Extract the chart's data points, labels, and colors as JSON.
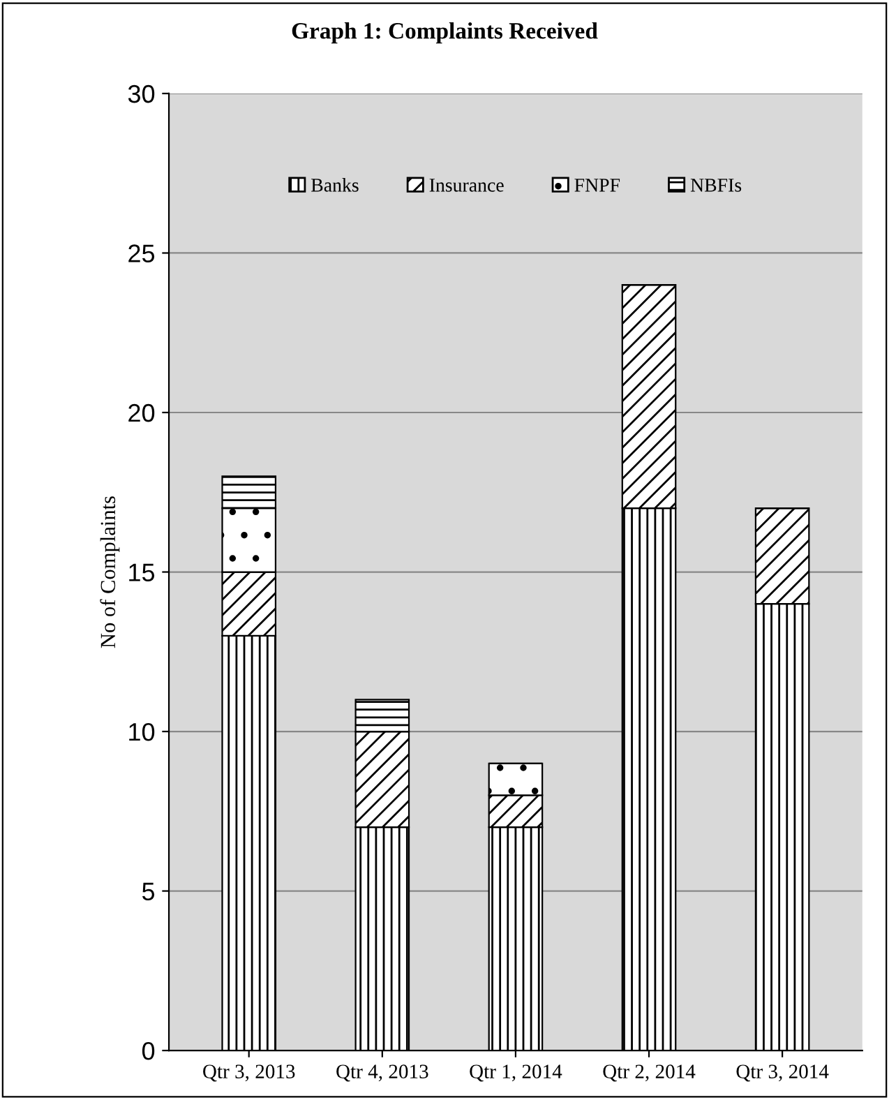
{
  "chart_data": {
    "type": "bar",
    "title": "Graph 1: Complaints Received",
    "ylabel": "No of Complaints",
    "categories": [
      "Qtr 3, 2013",
      "Qtr 4, 2013",
      "Qtr 1, 2014",
      "Qtr 2, 2014",
      "Qtr 3, 2014"
    ],
    "series": [
      {
        "name": "Banks",
        "color": "#000000",
        "values": [
          13,
          7,
          7,
          17,
          14
        ]
      },
      {
        "name": "Insurance",
        "color": "#000000",
        "values": [
          2,
          3,
          1,
          7,
          3
        ]
      },
      {
        "name": "FNPF",
        "color": "#000000",
        "values": [
          2,
          0,
          1,
          0,
          0
        ]
      },
      {
        "name": "NBFIs",
        "color": "#000000",
        "values": [
          1,
          1,
          0,
          0,
          0
        ]
      }
    ],
    "stacked": true,
    "ylim": [
      0,
      30
    ],
    "yticks": [
      0,
      5,
      10,
      15,
      20,
      25,
      30
    ],
    "grid": "y",
    "legend": "top"
  }
}
